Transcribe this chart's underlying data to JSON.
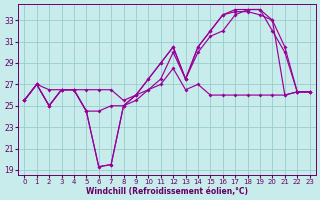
{
  "xlabel": "Windchill (Refroidissement éolien,°C)",
  "bg_color": "#c8ecec",
  "line_color": "#990099",
  "grid_color": "#99cccc",
  "axis_color": "#660066",
  "xlim_min": -0.5,
  "xlim_max": 23.5,
  "ylim_min": 18.5,
  "ylim_max": 34.5,
  "yticks": [
    19,
    21,
    23,
    25,
    27,
    29,
    31,
    33
  ],
  "xticks": [
    0,
    1,
    2,
    3,
    4,
    5,
    6,
    7,
    8,
    9,
    10,
    11,
    12,
    13,
    14,
    15,
    16,
    17,
    18,
    19,
    20,
    21,
    22,
    23
  ],
  "line1": [
    25.5,
    27.0,
    26.5,
    26.5,
    26.5,
    26.5,
    26.5,
    26.5,
    25.5,
    26.0,
    26.5,
    27.0,
    28.5,
    26.5,
    27.0,
    26.0,
    26.0,
    26.0,
    26.0,
    26.0,
    26.0,
    26.0,
    26.3,
    26.3
  ],
  "line2": [
    25.5,
    27.0,
    25.0,
    26.5,
    26.5,
    24.5,
    24.5,
    25.0,
    25.0,
    25.5,
    26.5,
    27.5,
    30.0,
    27.5,
    30.0,
    31.5,
    32.0,
    33.5,
    34.0,
    34.0,
    33.0,
    30.5,
    26.3,
    26.3
  ],
  "line3": [
    25.5,
    27.0,
    25.0,
    26.5,
    26.5,
    24.5,
    19.3,
    19.5,
    25.0,
    26.0,
    27.5,
    29.0,
    30.5,
    27.5,
    30.5,
    32.0,
    33.5,
    34.0,
    34.0,
    34.0,
    32.0,
    30.0,
    26.3,
    26.3
  ],
  "line4": [
    25.5,
    27.0,
    25.0,
    26.5,
    26.5,
    24.5,
    19.3,
    19.5,
    25.0,
    26.0,
    27.5,
    29.0,
    30.5,
    27.5,
    30.5,
    32.0,
    33.5,
    33.8,
    33.8,
    33.5,
    33.0,
    26.0,
    26.3,
    26.3
  ]
}
